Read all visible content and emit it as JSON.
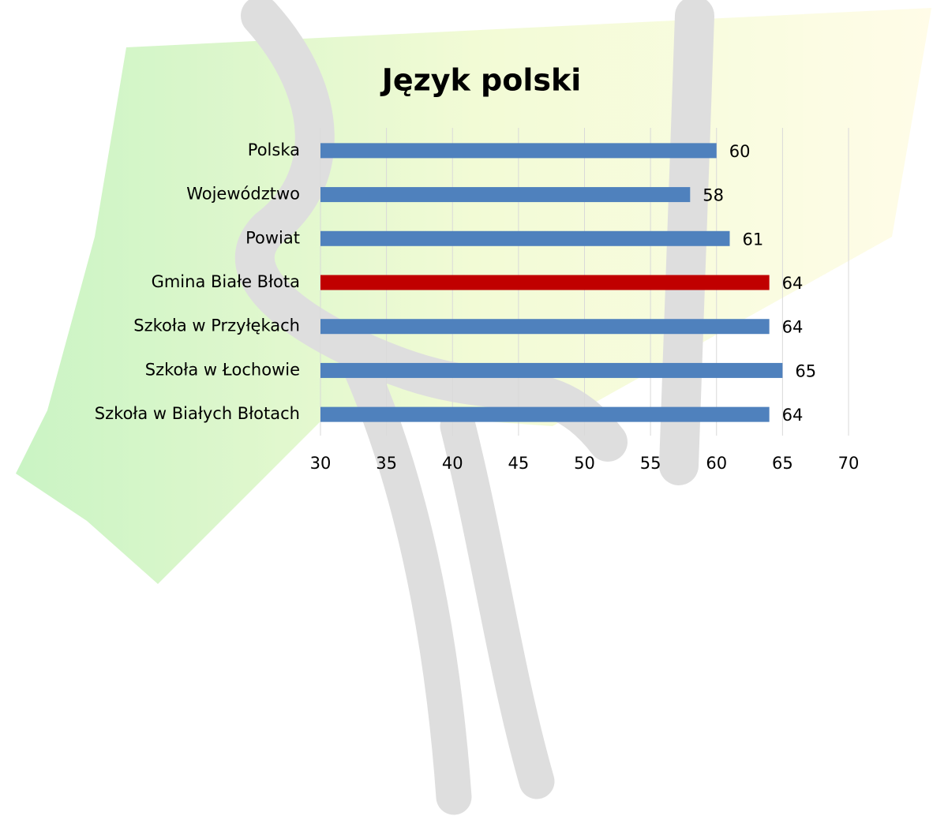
{
  "chart_data": {
    "type": "hbar",
    "title": "Język polski",
    "categories": [
      "Polska",
      "Województwo",
      "Powiat",
      "Gmina Białe Błota",
      "Szkoła w Przyłękach",
      "Szkoła w Łochowie",
      "Szkoła w Białych Błotach"
    ],
    "values": [
      60,
      58,
      61,
      64,
      64,
      65,
      64
    ],
    "colors": [
      "#4f81bd",
      "#4f81bd",
      "#4f81bd",
      "#c00000",
      "#4f81bd",
      "#4f81bd",
      "#4f81bd"
    ],
    "xlim": [
      30,
      70
    ],
    "xticks": [
      30,
      35,
      40,
      45,
      50,
      55,
      60,
      65,
      70
    ],
    "grid": true
  }
}
